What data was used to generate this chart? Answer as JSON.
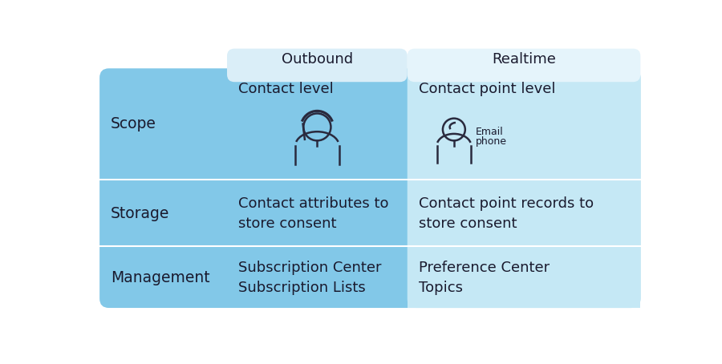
{
  "bg_color": "#ffffff",
  "table_bg": "#7ec8e8",
  "outbound_col_bg": "#7ec8e8",
  "realtime_col_bg": "#c2e4f4",
  "header_tab_outbound_bg": "#daeef8",
  "header_tab_realtime_bg": "#e8f6fc",
  "divider_color": "#aad4e8",
  "header_outbound": "Outbound",
  "header_realtime": "Realtime",
  "rows": [
    {
      "label": "Scope",
      "outbound_text": "Contact level",
      "realtime_text": "Contact point level",
      "has_icons": true
    },
    {
      "label": "Storage",
      "outbound_text": "Contact attributes to\nstore consent",
      "realtime_text": "Contact point records to\nstore consent",
      "has_icons": false
    },
    {
      "label": "Management",
      "outbound_text": "Subscription Center\nSubscription Lists",
      "realtime_text": "Preference Center\nTopics",
      "has_icons": false
    }
  ],
  "text_color": "#1a1a2e",
  "icon_color": "#2a2a3e",
  "label_fontsize": 13.5,
  "header_fontsize": 13,
  "cell_fontsize": 13
}
